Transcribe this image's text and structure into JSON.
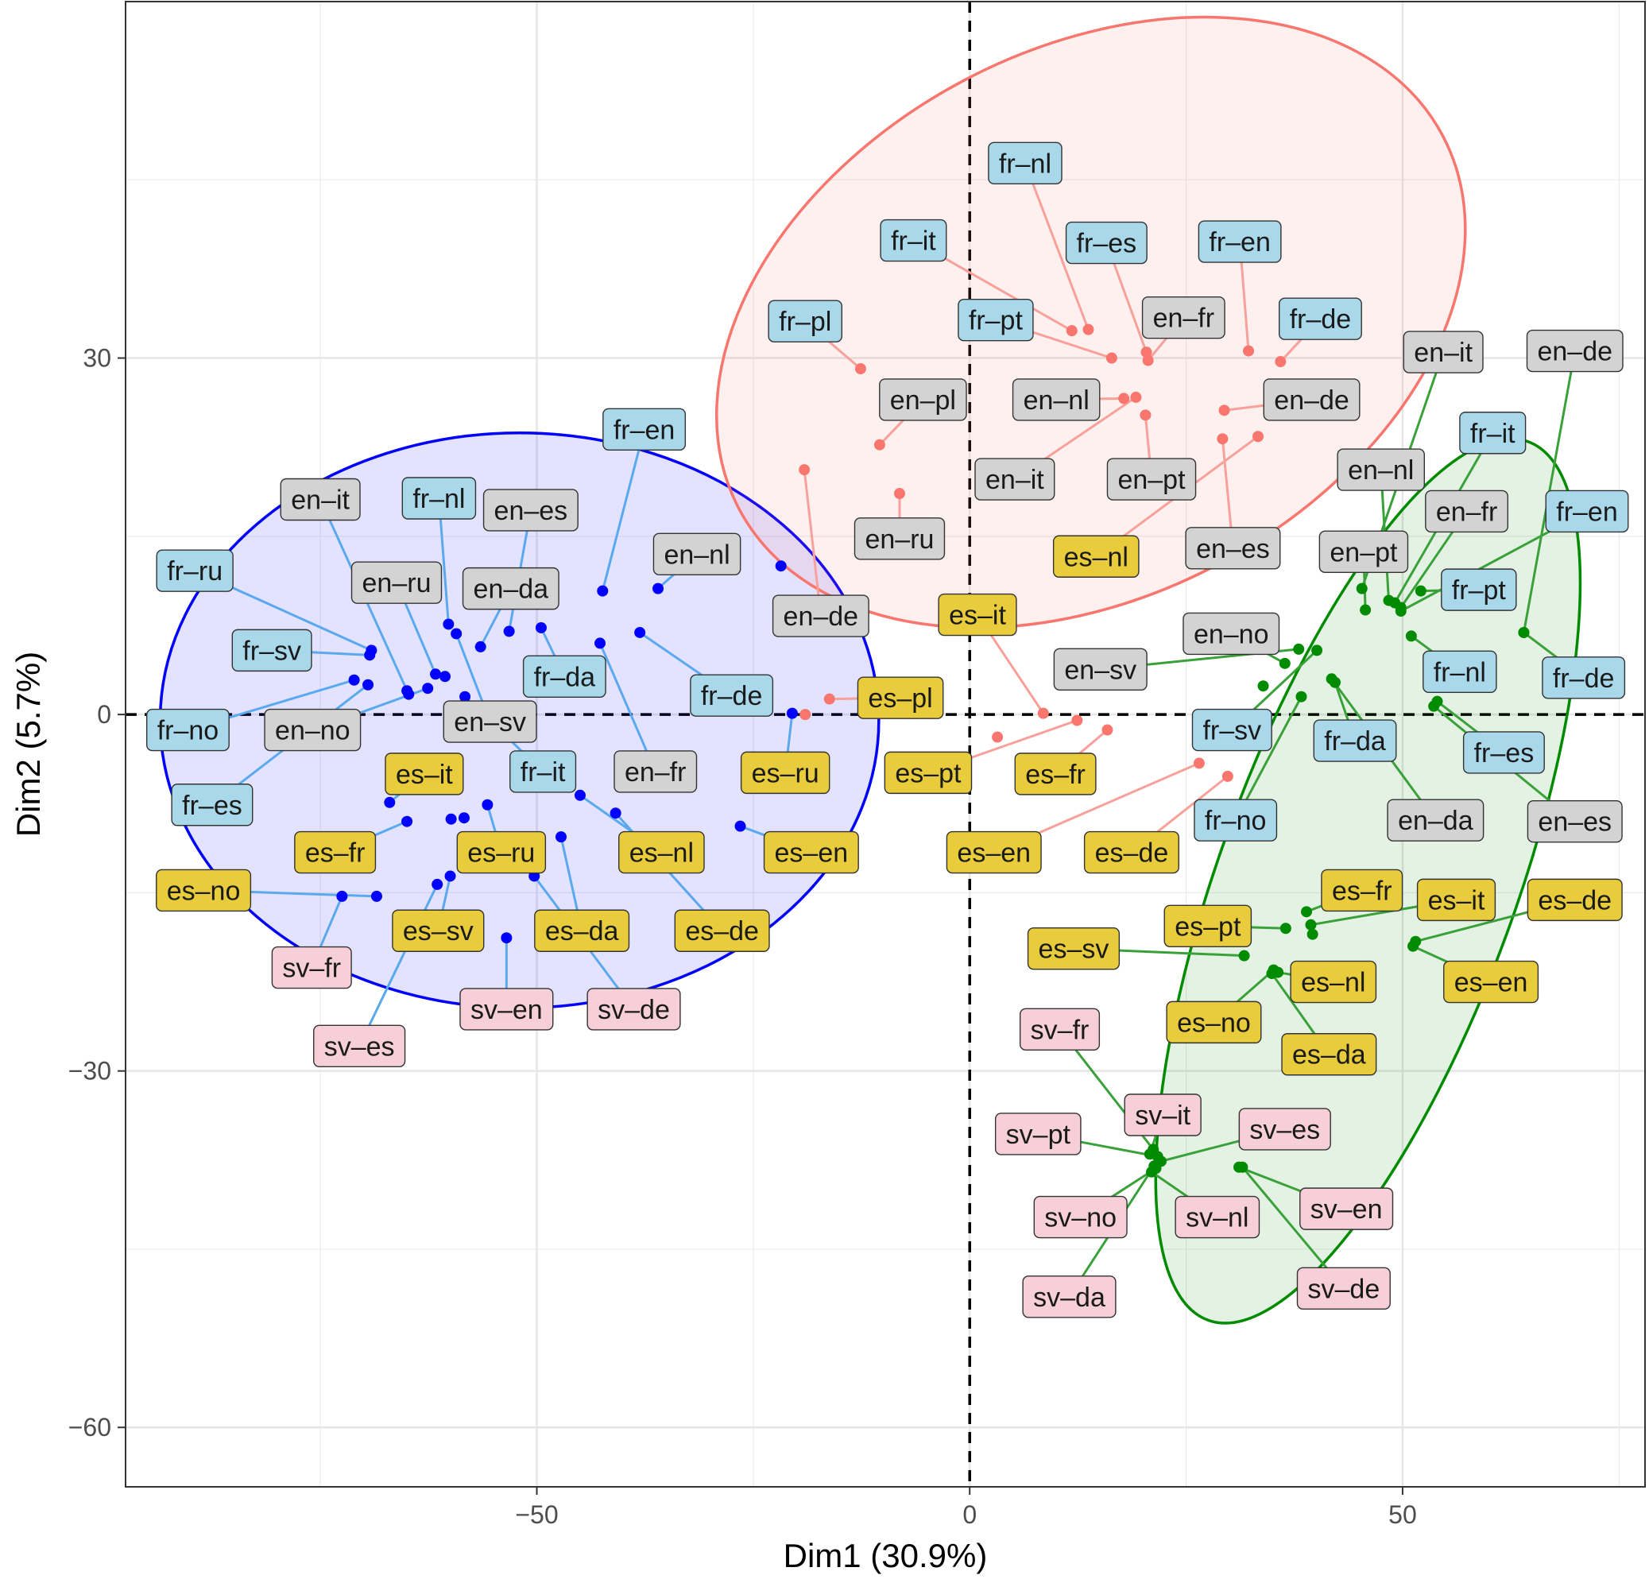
{
  "chart_data": {
    "type": "scatter",
    "xlabel": "Dim1 (30.9%)",
    "ylabel": "Dim2 (5.7%)",
    "xlim": [
      -97.5,
      78
    ],
    "ylim": [
      -65,
      60
    ],
    "xticks": [
      -50,
      0,
      50
    ],
    "yticks": [
      -60,
      -30,
      0,
      30
    ],
    "grid": true,
    "reference_lines": {
      "x": 0,
      "y": 0
    },
    "colors": {
      "blue_cluster": "#0000ff",
      "red_cluster": "#f8766d",
      "green_cluster": "#008b00",
      "label_fr": "#a8d8ea",
      "label_en": "#d3d3d3",
      "label_es": "#e9cc3c",
      "label_sv": "#f6cfd8"
    },
    "ellipses": [
      {
        "cluster": "blue",
        "cx": -52.0,
        "cy": -0.5,
        "rx": 41.5,
        "ry": 24.2,
        "angle": 0
      },
      {
        "cluster": "red",
        "cx": 14.0,
        "cy": 33.0,
        "rx": 46.0,
        "ry": 23.0,
        "angle": 28
      },
      {
        "cluster": "green",
        "cx": 46.0,
        "cy": -14.0,
        "rx": 54.0,
        "ry": 12.5,
        "angle": 70
      }
    ],
    "series": [
      {
        "cluster": "blue",
        "points": [
          {
            "label": "fr–ru",
            "x": -69.1,
            "y": 5.4,
            "lx": -89.5,
            "ly": 12.1,
            "group": "fr"
          },
          {
            "label": "fr–sv",
            "x": -69.3,
            "y": 5.0,
            "lx": -80.6,
            "ly": 5.4,
            "group": "fr"
          },
          {
            "label": "fr–no",
            "x": -71.1,
            "y": 2.9,
            "lx": -90.3,
            "ly": -1.3,
            "group": "fr"
          },
          {
            "label": "fr–es",
            "x": -69.5,
            "y": 2.5,
            "lx": -87.5,
            "ly": -7.6,
            "group": "fr"
          },
          {
            "label": "en–it",
            "x": -64.8,
            "y": 1.7,
            "lx": -75.0,
            "ly": 18.1,
            "group": "en"
          },
          {
            "label": "en–no",
            "x": -62.6,
            "y": 2.2,
            "lx": -75.9,
            "ly": -1.3,
            "group": "en"
          },
          {
            "label": "fr–nl",
            "x": -60.2,
            "y": 7.6,
            "lx": -61.3,
            "ly": 18.2,
            "group": "fr"
          },
          {
            "label": "en–ru",
            "x": -61.7,
            "y": 3.4,
            "lx": -66.2,
            "ly": 11.1,
            "group": "en"
          },
          {
            "label": "en–sv",
            "x": -59.3,
            "y": 6.8,
            "lx": -55.4,
            "ly": -0.6,
            "group": "en"
          },
          {
            "label": "en–es",
            "x": -53.2,
            "y": 7.0,
            "lx": -50.7,
            "ly": 17.2,
            "group": "en"
          },
          {
            "label": "en–da",
            "x": -56.5,
            "y": 5.7,
            "lx": -53.0,
            "ly": 10.6,
            "group": "en"
          },
          {
            "label": "fr–da",
            "x": -49.5,
            "y": 7.3,
            "lx": -46.8,
            "ly": 3.2,
            "group": "fr"
          },
          {
            "label": "fr–en",
            "x": -42.4,
            "y": 10.4,
            "lx": -37.6,
            "ly": 24.0,
            "group": "fr"
          },
          {
            "label": "en–nl",
            "x": -36.0,
            "y": 10.6,
            "lx": -31.5,
            "ly": 13.5,
            "group": "en"
          },
          {
            "label": "fr–de",
            "x": -38.1,
            "y": 6.9,
            "lx": -27.5,
            "ly": 1.6,
            "group": "fr"
          },
          {
            "label": "en–fr",
            "x": -42.7,
            "y": 6.0,
            "lx": -36.3,
            "ly": -4.8,
            "group": "en"
          },
          {
            "label": "fr–it",
            "x": -58.3,
            "y": 1.5,
            "lx": -49.3,
            "ly": -4.8,
            "group": "fr"
          },
          {
            "label": "es–it",
            "x": -67.0,
            "y": -7.4,
            "lx": -63.0,
            "ly": -5.0,
            "group": "es"
          },
          {
            "label": "es–fr",
            "x": -65.0,
            "y": -9.0,
            "lx": -73.3,
            "ly": -11.6,
            "group": "es"
          },
          {
            "label": "es–no",
            "x": -68.5,
            "y": -15.3,
            "lx": -88.5,
            "ly": -14.8,
            "group": "es"
          },
          {
            "label": "es–ru",
            "x": -55.7,
            "y": -7.6,
            "lx": -54.1,
            "ly": -11.6,
            "group": "es"
          },
          {
            "label": "es–sv",
            "x": -60.0,
            "y": -13.6,
            "lx": -61.4,
            "ly": -18.2,
            "group": "es"
          },
          {
            "label": "es–da",
            "x": -47.2,
            "y": -10.3,
            "lx": -44.8,
            "ly": -18.2,
            "group": "es"
          },
          {
            "label": "es–nl",
            "x": -45.0,
            "y": -6.8,
            "lx": -35.6,
            "ly": -11.6,
            "group": "es"
          },
          {
            "label": "es–de",
            "x": -40.9,
            "y": -8.3,
            "lx": -28.6,
            "ly": -18.2,
            "group": "es"
          },
          {
            "label": "es–en",
            "x": -26.5,
            "y": -9.4,
            "lx": -18.3,
            "ly": -11.6,
            "group": "es"
          },
          {
            "label": "es–ru",
            "x": -20.5,
            "y": 0.1,
            "lx": -21.3,
            "ly": -4.9,
            "group": "es"
          },
          {
            "label": "sv–fr",
            "x": -72.5,
            "y": -15.3,
            "lx": -76.0,
            "ly": -21.3,
            "group": "sv"
          },
          {
            "label": "sv–es",
            "x": -61.5,
            "y": -14.3,
            "lx": -70.5,
            "ly": -27.9,
            "group": "sv"
          },
          {
            "label": "sv–en",
            "x": -53.5,
            "y": -18.8,
            "lx": -53.5,
            "ly": -24.8,
            "group": "sv"
          },
          {
            "label": "sv–de",
            "x": -50.3,
            "y": -13.6,
            "lx": -38.8,
            "ly": -24.8,
            "group": "sv"
          },
          {
            "label": "",
            "x": -59.9,
            "y": -8.8,
            "lx": -59.9,
            "ly": -8.8,
            "group": "none"
          },
          {
            "label": "",
            "x": -58.4,
            "y": -8.7,
            "lx": -58.4,
            "ly": -8.7,
            "group": "none"
          },
          {
            "label": "",
            "x": -60.6,
            "y": 3.2,
            "lx": -60.6,
            "ly": 3.2,
            "group": "none"
          },
          {
            "label": "",
            "x": -65.0,
            "y": 2.0,
            "lx": -65.0,
            "ly": 2.0,
            "group": "none"
          },
          {
            "label": "",
            "x": -21.8,
            "y": 12.5,
            "lx": -21.8,
            "ly": 12.5,
            "group": "none"
          }
        ]
      },
      {
        "cluster": "red",
        "points": [
          {
            "label": "fr–nl",
            "x": 13.7,
            "y": 32.4,
            "lx": 6.4,
            "ly": 46.4,
            "group": "fr"
          },
          {
            "label": "fr–it",
            "x": 11.8,
            "y": 32.3,
            "lx": -6.5,
            "ly": 39.9,
            "group": "fr"
          },
          {
            "label": "fr–es",
            "x": 20.4,
            "y": 30.5,
            "lx": 15.8,
            "ly": 39.7,
            "group": "fr"
          },
          {
            "label": "fr–en",
            "x": 32.2,
            "y": 30.6,
            "lx": 31.2,
            "ly": 39.8,
            "group": "fr"
          },
          {
            "label": "fr–pl",
            "x": -12.6,
            "y": 29.1,
            "lx": -19.0,
            "ly": 33.1,
            "group": "fr"
          },
          {
            "label": "fr–pt",
            "x": 16.4,
            "y": 30.0,
            "lx": 3.0,
            "ly": 33.2,
            "group": "fr"
          },
          {
            "label": "en–fr",
            "x": 20.6,
            "y": 29.8,
            "lx": 24.7,
            "ly": 33.4,
            "group": "en"
          },
          {
            "label": "fr–de",
            "x": 35.9,
            "y": 29.7,
            "lx": 40.5,
            "ly": 33.3,
            "group": "fr"
          },
          {
            "label": "en–pl",
            "x": -10.4,
            "y": 22.7,
            "lx": -5.4,
            "ly": 26.5,
            "group": "en"
          },
          {
            "label": "en–nl",
            "x": 17.8,
            "y": 26.6,
            "lx": 10.0,
            "ly": 26.5,
            "group": "en"
          },
          {
            "label": "en–de",
            "x": 29.4,
            "y": 25.6,
            "lx": 39.5,
            "ly": 26.5,
            "group": "en"
          },
          {
            "label": "en–it",
            "x": 19.2,
            "y": 26.7,
            "lx": 5.2,
            "ly": 19.8,
            "group": "en"
          },
          {
            "label": "en–pt",
            "x": 20.3,
            "y": 25.2,
            "lx": 21.0,
            "ly": 19.8,
            "group": "en"
          },
          {
            "label": "en–ru",
            "x": -8.1,
            "y": 18.6,
            "lx": -8.1,
            "ly": 14.8,
            "group": "en"
          },
          {
            "label": "en–es",
            "x": 29.2,
            "y": 23.2,
            "lx": 30.4,
            "ly": 14.0,
            "group": "en"
          },
          {
            "label": "en–de",
            "x": -19.1,
            "y": 20.6,
            "lx": -17.2,
            "ly": 8.3,
            "group": "en"
          },
          {
            "label": "es–nl",
            "x": 33.3,
            "y": 23.4,
            "lx": 14.6,
            "ly": 13.3,
            "group": "es"
          },
          {
            "label": "es–it",
            "x": 8.5,
            "y": 0.1,
            "lx": 0.9,
            "ly": 8.4,
            "group": "es"
          },
          {
            "label": "es–pl",
            "x": -16.2,
            "y": 1.3,
            "lx": -8.0,
            "ly": 1.4,
            "group": "es"
          },
          {
            "label": "es–pt",
            "x": 12.4,
            "y": -0.5,
            "lx": -4.8,
            "ly": -4.9,
            "group": "es"
          },
          {
            "label": "es–fr",
            "x": 15.9,
            "y": -1.3,
            "lx": 9.9,
            "ly": -5.0,
            "group": "es"
          },
          {
            "label": "es–en",
            "x": 26.5,
            "y": -4.1,
            "lx": 2.8,
            "ly": -11.6,
            "group": "es"
          },
          {
            "label": "es–de",
            "x": 29.8,
            "y": -5.2,
            "lx": 18.7,
            "ly": -11.6,
            "group": "es"
          },
          {
            "label": "",
            "x": 3.2,
            "y": -1.9,
            "lx": 3.2,
            "ly": -1.9,
            "group": "none"
          },
          {
            "label": "",
            "x": -19.0,
            "y": 0.0,
            "lx": -19.0,
            "ly": 0.0,
            "group": "none"
          }
        ]
      },
      {
        "cluster": "green",
        "points": [
          {
            "label": "en–it",
            "x": 45.3,
            "y": 10.6,
            "lx": 54.7,
            "ly": 30.5,
            "group": "en"
          },
          {
            "label": "en–de",
            "x": 64.0,
            "y": 6.9,
            "lx": 69.9,
            "ly": 30.6,
            "group": "en"
          },
          {
            "label": "fr–it",
            "x": 49.1,
            "y": 9.4,
            "lx": 60.4,
            "ly": 23.7,
            "group": "fr"
          },
          {
            "label": "en–nl",
            "x": 48.4,
            "y": 9.6,
            "lx": 47.5,
            "ly": 20.6,
            "group": "en"
          },
          {
            "label": "en–fr",
            "x": 49.8,
            "y": 9.0,
            "lx": 57.4,
            "ly": 17.1,
            "group": "en"
          },
          {
            "label": "fr–en",
            "x": 49.8,
            "y": 8.7,
            "lx": 71.3,
            "ly": 17.1,
            "group": "fr"
          },
          {
            "label": "en–pt",
            "x": 45.7,
            "y": 8.8,
            "lx": 45.5,
            "ly": 13.7,
            "group": "en"
          },
          {
            "label": "fr–pt",
            "x": 52.1,
            "y": 10.4,
            "lx": 58.8,
            "ly": 10.5,
            "group": "fr"
          },
          {
            "label": "fr–nl",
            "x": 51.0,
            "y": 6.6,
            "lx": 56.6,
            "ly": 3.6,
            "group": "fr"
          },
          {
            "label": "fr–de",
            "x": 64.0,
            "y": 6.9,
            "lx": 70.9,
            "ly": 3.1,
            "group": "fr"
          },
          {
            "label": "en–no",
            "x": 36.4,
            "y": 4.3,
            "lx": 30.2,
            "ly": 6.8,
            "group": "en"
          },
          {
            "label": "en–sv",
            "x": 38.0,
            "y": 5.5,
            "lx": 15.1,
            "ly": 3.8,
            "group": "en"
          },
          {
            "label": "fr–sv",
            "x": 40.1,
            "y": 5.4,
            "lx": 30.3,
            "ly": -1.3,
            "group": "fr"
          },
          {
            "label": "fr–da",
            "x": 42.2,
            "y": 2.7,
            "lx": 44.5,
            "ly": -2.2,
            "group": "fr"
          },
          {
            "label": "fr–es",
            "x": 54.0,
            "y": 1.1,
            "lx": 61.7,
            "ly": -3.2,
            "group": "fr"
          },
          {
            "label": "fr–no",
            "x": 38.3,
            "y": 1.5,
            "lx": 30.7,
            "ly": -8.9,
            "group": "fr"
          },
          {
            "label": "en–da",
            "x": 41.8,
            "y": 3.0,
            "lx": 53.8,
            "ly": -8.9,
            "group": "en"
          },
          {
            "label": "en–es",
            "x": 53.6,
            "y": 0.7,
            "lx": 69.9,
            "ly": -9.0,
            "group": "en"
          },
          {
            "label": "",
            "x": 33.9,
            "y": 2.4,
            "lx": 33.9,
            "ly": 2.4,
            "group": "none"
          },
          {
            "label": "es–fr",
            "x": 38.9,
            "y": -16.6,
            "lx": 45.3,
            "ly": -14.8,
            "group": "es"
          },
          {
            "label": "es–it",
            "x": 39.4,
            "y": -17.7,
            "lx": 56.2,
            "ly": -15.6,
            "group": "es"
          },
          {
            "label": "es–de",
            "x": 51.5,
            "y": -19.1,
            "lx": 69.9,
            "ly": -15.6,
            "group": "es"
          },
          {
            "label": "es–pt",
            "x": 36.5,
            "y": -18.0,
            "lx": 27.5,
            "ly": -17.8,
            "group": "es"
          },
          {
            "label": "es–sv",
            "x": 31.7,
            "y": -20.3,
            "lx": 12.0,
            "ly": -19.7,
            "group": "es"
          },
          {
            "label": "es–nl",
            "x": 35.6,
            "y": -21.7,
            "lx": 42.0,
            "ly": -22.5,
            "group": "es"
          },
          {
            "label": "es–en",
            "x": 51.2,
            "y": -19.5,
            "lx": 60.2,
            "ly": -22.5,
            "group": "es"
          },
          {
            "label": "es–no",
            "x": 35.1,
            "y": -21.5,
            "lx": 28.2,
            "ly": -25.9,
            "group": "es"
          },
          {
            "label": "es–da",
            "x": 34.9,
            "y": -21.8,
            "lx": 41.5,
            "ly": -28.6,
            "group": "es"
          },
          {
            "label": "",
            "x": 39.6,
            "y": -18.5,
            "lx": 39.6,
            "ly": -18.5,
            "group": "none"
          },
          {
            "label": "sv–fr",
            "x": 21.2,
            "y": -36.6,
            "lx": 10.4,
            "ly": -26.5,
            "group": "sv"
          },
          {
            "label": "sv–it",
            "x": 20.8,
            "y": -37.0,
            "lx": 22.3,
            "ly": -33.7,
            "group": "sv"
          },
          {
            "label": "sv–pt",
            "x": 21.7,
            "y": -37.2,
            "lx": 7.9,
            "ly": -35.3,
            "group": "sv"
          },
          {
            "label": "sv–es",
            "x": 22.1,
            "y": -37.6,
            "lx": 36.4,
            "ly": -34.9,
            "group": "sv"
          },
          {
            "label": "sv–en",
            "x": 31.1,
            "y": -38.1,
            "lx": 43.5,
            "ly": -41.6,
            "group": "sv"
          },
          {
            "label": "sv–no",
            "x": 21.5,
            "y": -38.2,
            "lx": 12.8,
            "ly": -42.3,
            "group": "sv"
          },
          {
            "label": "sv–nl",
            "x": 21.0,
            "y": -38.5,
            "lx": 28.6,
            "ly": -42.3,
            "group": "sv"
          },
          {
            "label": "sv–da",
            "x": 21.3,
            "y": -38.0,
            "lx": 11.5,
            "ly": -49.0,
            "group": "sv"
          },
          {
            "label": "sv–de",
            "x": 31.5,
            "y": -38.1,
            "lx": 43.2,
            "ly": -48.3,
            "group": "sv"
          }
        ]
      }
    ]
  }
}
